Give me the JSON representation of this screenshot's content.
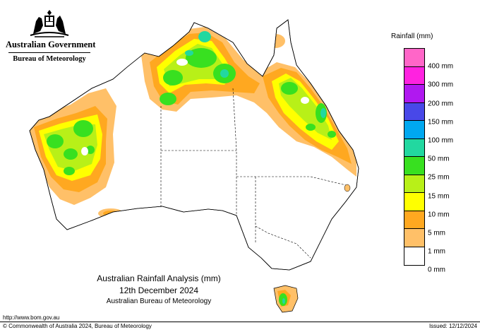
{
  "header": {
    "government": "Australian Government",
    "bureau": "Bureau of Meteorology"
  },
  "legend": {
    "title": "Rainfall (mm)",
    "labels": [
      "400 mm",
      "300 mm",
      "200 mm",
      "150 mm",
      "100 mm",
      "50 mm",
      "25 mm",
      "15 mm",
      "10 mm",
      "5 mm",
      "1 mm",
      "0 mm"
    ],
    "colors": [
      "#ff66c8",
      "#ff22e0",
      "#b018f0",
      "#4848e8",
      "#00a8f0",
      "#22d8a0",
      "#38e020",
      "#b8f018",
      "#ffff00",
      "#ffa820",
      "#ffc068",
      "#ffffff"
    ]
  },
  "caption": {
    "line1": "Australian Rainfall Analysis (mm)",
    "line2": "12th December 2024",
    "line3": "Australian Bureau of Meteorology"
  },
  "footer": {
    "url": "http://www.bom.gov.au",
    "copyright": "© Commonwealth of Australia 2024, Bureau of Meteorology",
    "issued": "Issued: 12/12/2024"
  }
}
